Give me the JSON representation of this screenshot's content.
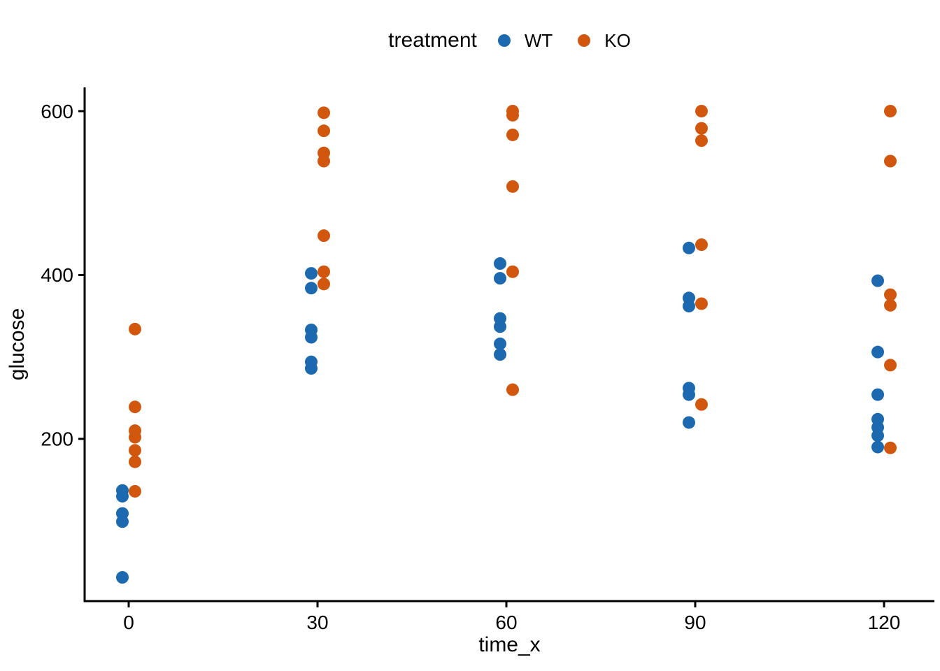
{
  "chart_data": {
    "type": "scatter",
    "title": "",
    "xlabel": "time_x",
    "ylabel": "glucose",
    "x_ticks": [
      "0",
      "30",
      "60",
      "90",
      "120"
    ],
    "x_tick_values": [
      0,
      30,
      60,
      90,
      120
    ],
    "y_ticks": [
      "200",
      "400",
      "600"
    ],
    "y_tick_values": [
      200,
      400,
      600
    ],
    "xlim": [
      -7,
      128
    ],
    "ylim": [
      2,
      629
    ],
    "grid": false,
    "point_radius": 9,
    "axis_color": "#000000",
    "legend": {
      "title": "treatment",
      "position": "top",
      "entries": [
        {
          "label": "WT",
          "color": "#1c69af"
        },
        {
          "label": "KO",
          "color": "#d1570e"
        }
      ]
    },
    "series": [
      {
        "name": "WT",
        "color": "#1c69af",
        "time_offset": -1,
        "points": {
          "0": [
            137,
            130,
            109,
            99,
            31
          ],
          "30": [
            402,
            384,
            333,
            324,
            294,
            286
          ],
          "60": [
            414,
            396,
            347,
            337,
            316,
            303
          ],
          "90": [
            433,
            372,
            362,
            262,
            254,
            220
          ],
          "120": [
            393,
            306,
            254,
            224,
            214,
            204,
            190
          ]
        }
      },
      {
        "name": "KO",
        "color": "#d1570e",
        "time_offset": 1,
        "points": {
          "0": [
            334,
            239,
            210,
            202,
            186,
            172,
            136
          ],
          "30": [
            598,
            576,
            549,
            539,
            448,
            404,
            389
          ],
          "60": [
            600,
            595,
            571,
            508,
            404,
            260
          ],
          "90": [
            600,
            579,
            564,
            437,
            365,
            242
          ],
          "120": [
            600,
            539,
            376,
            363,
            290,
            189
          ]
        }
      }
    ]
  }
}
